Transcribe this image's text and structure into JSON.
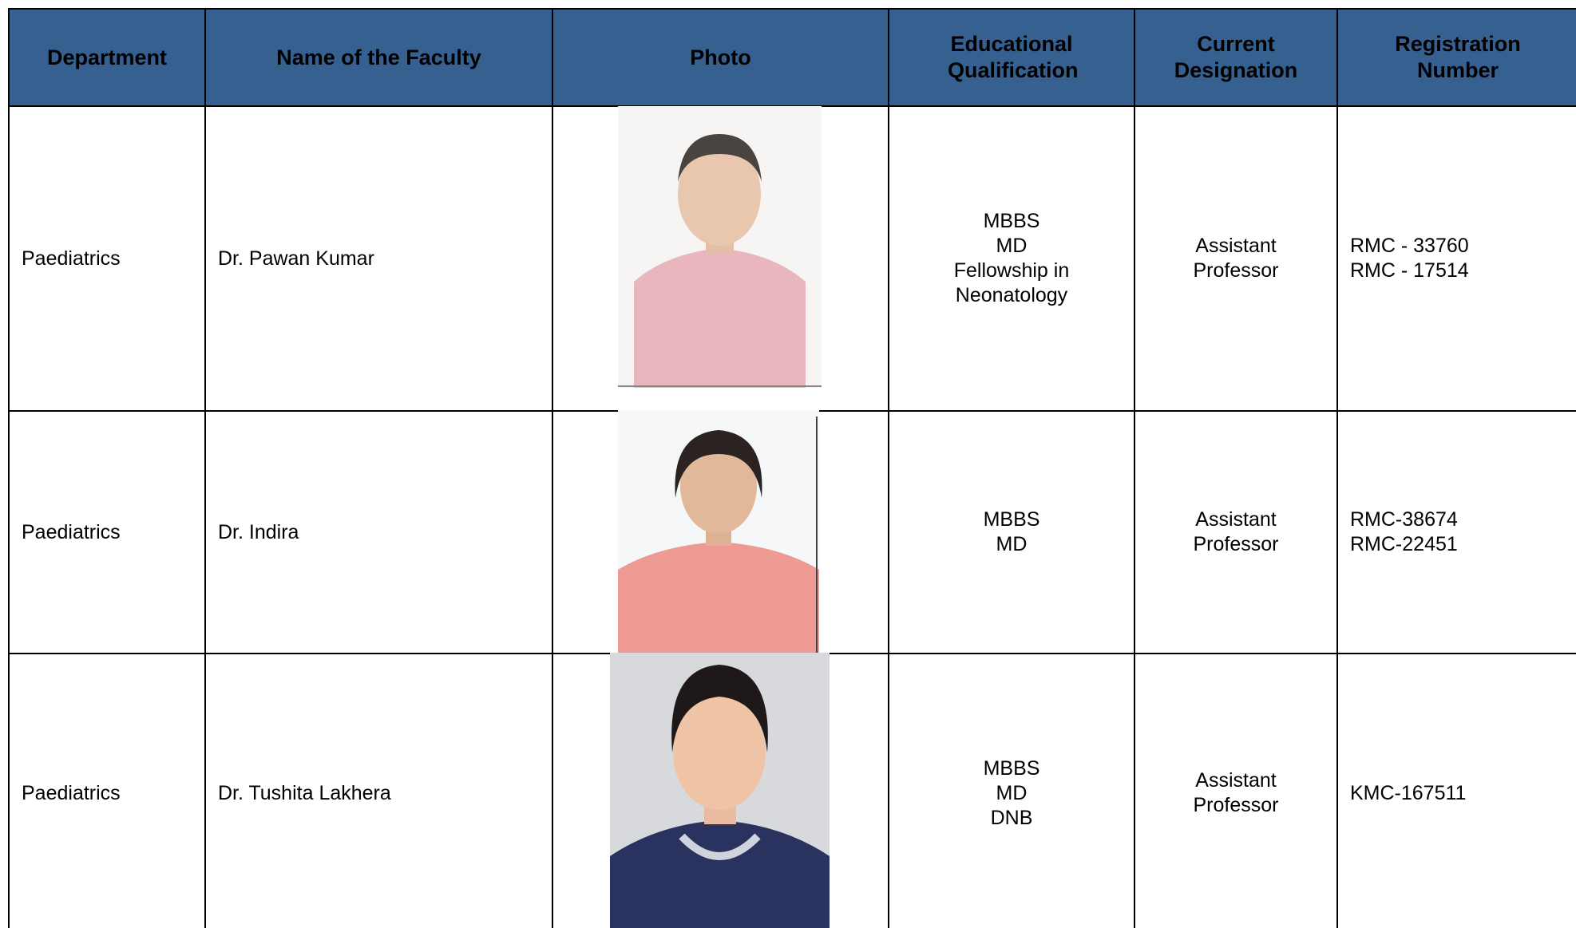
{
  "table": {
    "header": [
      "Department",
      "Name of the Faculty",
      "Photo",
      "Educational Qualification",
      "Current Designation",
      "Registration Number"
    ],
    "rows": [
      {
        "department": "Paediatrics",
        "name": "Dr. Pawan Kumar",
        "qualification": [
          "MBBS",
          "MD",
          "Fellowship in",
          "Neonatology"
        ],
        "designation": [
          "Assistant",
          "Professor"
        ],
        "registration": [
          "RMC - 33760",
          "RMC - 17514"
        ]
      },
      {
        "department": "Paediatrics",
        "name": "Dr. Indira",
        "qualification": [
          "MBBS",
          "MD"
        ],
        "designation": [
          "Assistant",
          "Professor"
        ],
        "registration": [
          "RMC-38674",
          "RMC-22451"
        ]
      },
      {
        "department": "Paediatrics",
        "name": "Dr. Tushita Lakhera",
        "qualification": [
          "MBBS",
          "MD",
          "DNB"
        ],
        "designation": [
          "Assistant",
          "Professor"
        ],
        "registration": [
          "KMC-167511"
        ]
      }
    ]
  }
}
